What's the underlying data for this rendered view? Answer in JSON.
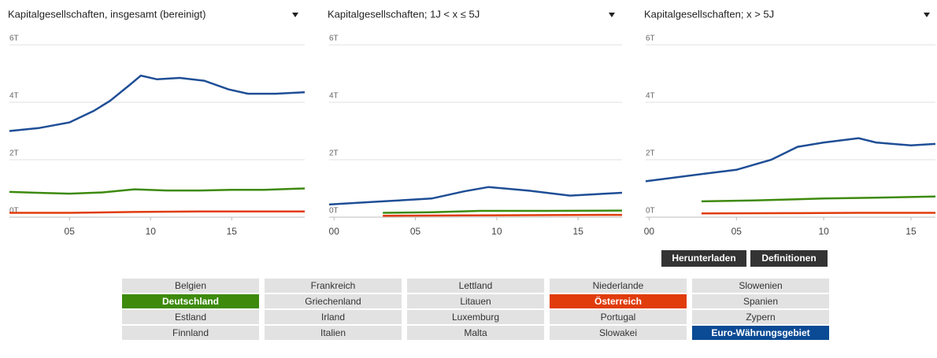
{
  "chart_data": [
    {
      "type": "line",
      "title": "Kapitalgesellschaften, insgesamt (bereinigt)",
      "xlim": [
        1.3,
        19.5
      ],
      "xticks": [
        {
          "value": 5,
          "label": "05"
        },
        {
          "value": 10,
          "label": "10"
        },
        {
          "value": 15,
          "label": "15"
        }
      ],
      "ylim": [
        0,
        6
      ],
      "yticks": [
        {
          "value": 0,
          "label": "0T"
        },
        {
          "value": 2,
          "label": "2T"
        },
        {
          "value": 4,
          "label": "4T"
        },
        {
          "value": 6,
          "label": "6T"
        }
      ],
      "grid": true,
      "series": [
        {
          "color": "#1f4e96",
          "x": [
            1.3,
            3.1,
            5.0,
            6.5,
            7.5,
            8.7,
            9.4,
            10.4,
            11.8,
            13.3,
            14.8,
            16,
            17.7,
            19.5
          ],
          "values": [
            3.0,
            3.1,
            3.3,
            3.7,
            4.05,
            4.6,
            4.93,
            4.8,
            4.85,
            4.75,
            4.45,
            4.3,
            4.3,
            4.35
          ]
        },
        {
          "color": "#3d8a0d",
          "x": [
            1.3,
            3,
            5,
            7,
            9,
            11,
            13,
            15,
            17,
            19.5
          ],
          "values": [
            0.88,
            0.85,
            0.82,
            0.86,
            0.97,
            0.93,
            0.93,
            0.95,
            0.95,
            1.0
          ]
        },
        {
          "color": "#e03c0c",
          "x": [
            1.3,
            5,
            9,
            13,
            17,
            19.5
          ],
          "values": [
            0.15,
            0.15,
            0.18,
            0.2,
            0.2,
            0.2
          ]
        }
      ]
    },
    {
      "type": "line",
      "title": "Kapitalgesellschaften; 1J < x ≤ 5J",
      "xlim": [
        -0.3,
        17.7
      ],
      "xticks": [
        {
          "value": 0,
          "label": "00"
        },
        {
          "value": 5,
          "label": "05"
        },
        {
          "value": 10,
          "label": "10"
        },
        {
          "value": 15,
          "label": "15"
        }
      ],
      "ylim": [
        0,
        6
      ],
      "yticks": [
        {
          "value": 0,
          "label": "0T"
        },
        {
          "value": 2,
          "label": "2T"
        },
        {
          "value": 4,
          "label": "4T"
        },
        {
          "value": 6,
          "label": "6T"
        }
      ],
      "grid": true,
      "series": [
        {
          "color": "#1f4e96",
          "x": [
            -0.3,
            3,
            6,
            8,
            9.5,
            12,
            14.5,
            17.7
          ],
          "values": [
            0.44,
            0.55,
            0.65,
            0.9,
            1.05,
            0.92,
            0.75,
            0.85
          ]
        },
        {
          "color": "#3d8a0d",
          "x": [
            3,
            6,
            9,
            13,
            17.7
          ],
          "values": [
            0.15,
            0.17,
            0.22,
            0.22,
            0.23
          ]
        },
        {
          "color": "#e03c0c",
          "x": [
            3,
            8,
            13,
            17.7
          ],
          "values": [
            0.05,
            0.06,
            0.07,
            0.08
          ]
        }
      ]
    },
    {
      "type": "line",
      "title": "Kapitalgesellschaften; x > 5J",
      "xlim": [
        -0.2,
        16.4
      ],
      "xticks": [
        {
          "value": 0,
          "label": "00"
        },
        {
          "value": 5,
          "label": "05"
        },
        {
          "value": 10,
          "label": "10"
        },
        {
          "value": 15,
          "label": "15"
        }
      ],
      "ylim": [
        0,
        6
      ],
      "yticks": [
        {
          "value": 0,
          "label": "0T"
        },
        {
          "value": 2,
          "label": "2T"
        },
        {
          "value": 4,
          "label": "4T"
        },
        {
          "value": 6,
          "label": "6T"
        }
      ],
      "grid": true,
      "series": [
        {
          "color": "#1f4e96",
          "x": [
            -0.2,
            3,
            5,
            7,
            8.5,
            10,
            12,
            13,
            15,
            16.4
          ],
          "values": [
            1.25,
            1.5,
            1.65,
            2.0,
            2.45,
            2.6,
            2.75,
            2.6,
            2.5,
            2.55
          ]
        },
        {
          "color": "#3d8a0d",
          "x": [
            3,
            6,
            10,
            13,
            16.4
          ],
          "values": [
            0.55,
            0.58,
            0.65,
            0.68,
            0.72
          ]
        },
        {
          "color": "#e03c0c",
          "x": [
            3,
            8,
            12,
            16.4
          ],
          "values": [
            0.13,
            0.14,
            0.15,
            0.15
          ]
        }
      ]
    }
  ],
  "buttons": [
    "Herunterladen",
    "Definitionen"
  ],
  "countries": [
    {
      "label": "Belgien"
    },
    {
      "label": "Deutschland",
      "color": "#3d8a0d"
    },
    {
      "label": "Estland"
    },
    {
      "label": "Finnland"
    },
    {
      "label": "Frankreich"
    },
    {
      "label": "Griechenland"
    },
    {
      "label": "Irland"
    },
    {
      "label": "Italien"
    },
    {
      "label": "Lettland"
    },
    {
      "label": "Litauen"
    },
    {
      "label": "Luxemburg"
    },
    {
      "label": "Malta"
    },
    {
      "label": "Niederlande"
    },
    {
      "label": "Österreich",
      "color": "#e03c0c"
    },
    {
      "label": "Portugal"
    },
    {
      "label": "Slowakei"
    },
    {
      "label": "Slowenien"
    },
    {
      "label": "Spanien"
    },
    {
      "label": "Zypern"
    },
    {
      "label": "Euro-Währungsgebiet",
      "color": "#0b4a94"
    }
  ]
}
